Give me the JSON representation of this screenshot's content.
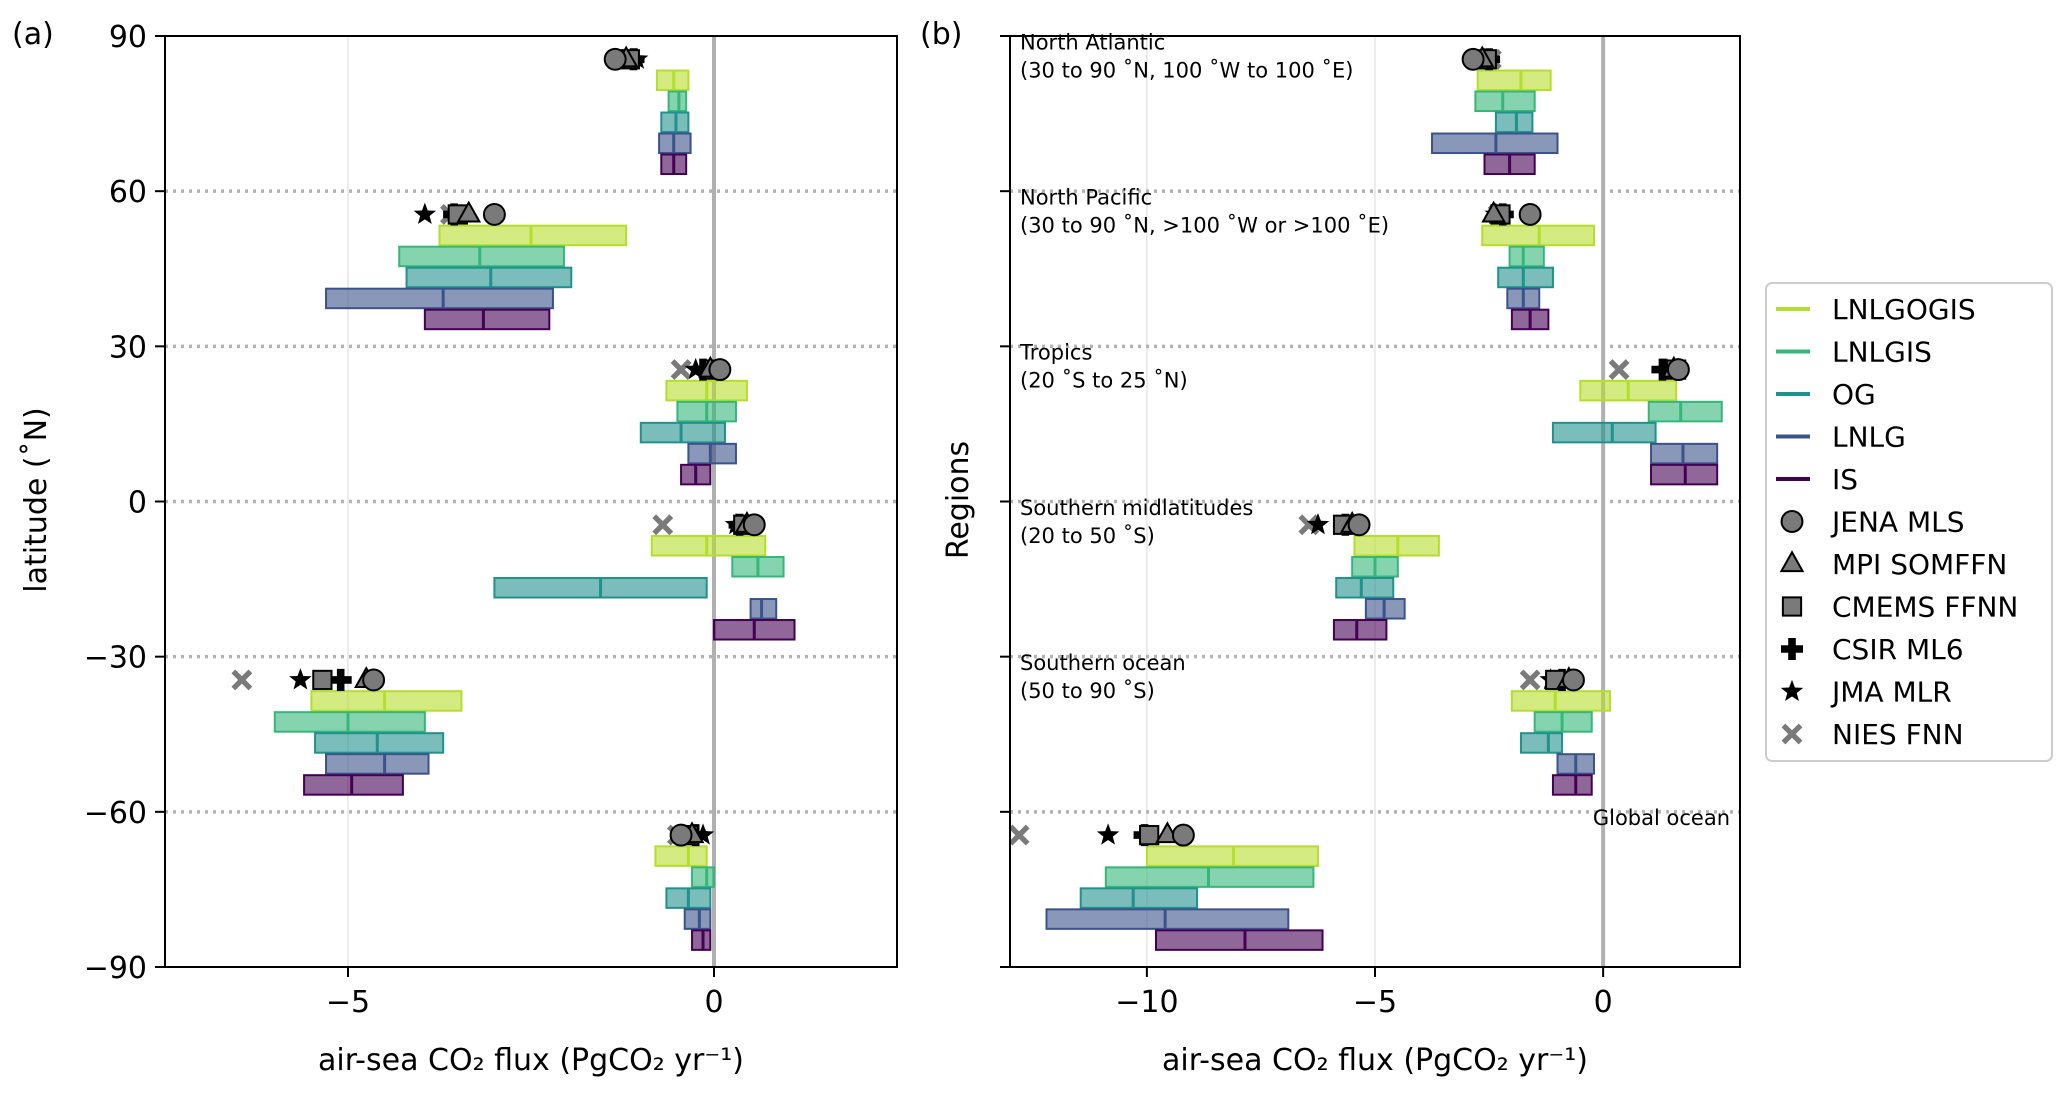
{
  "figure": {
    "legend": [
      {
        "name": "LNLGOGIS",
        "kind": "line",
        "color": "#b5de2b"
      },
      {
        "name": "LNLGIS",
        "kind": "line",
        "color": "#35b779"
      },
      {
        "name": "OG",
        "kind": "line",
        "color": "#21918c"
      },
      {
        "name": "LNLG",
        "kind": "line",
        "color": "#3b528b"
      },
      {
        "name": "IS",
        "kind": "line",
        "color": "#440154"
      },
      {
        "name": "JENA MLS",
        "kind": "marker",
        "marker": "circle"
      },
      {
        "name": "MPI SOMFFN",
        "kind": "marker",
        "marker": "triangle"
      },
      {
        "name": "CMEMS FFNN",
        "kind": "marker",
        "marker": "square"
      },
      {
        "name": "CSIR ML6",
        "kind": "marker",
        "marker": "plus"
      },
      {
        "name": "JMA MLR",
        "kind": "marker",
        "marker": "star"
      },
      {
        "name": "NIES FNN",
        "kind": "marker",
        "marker": "x"
      }
    ],
    "legend_placement": "right, outside panels",
    "marker_colors": {
      "black": "#000000",
      "gray": "#7a7a7a"
    }
  },
  "chart_data": [
    {
      "type": "bar",
      "orientation": "horizontal-range",
      "panel_label": "(a)",
      "xlabel": "air-sea CO₂ flux (PgCO₂ yr⁻¹)",
      "ylabel": "latitude (˚N)",
      "xlim": [
        -7.5,
        2.5
      ],
      "ylim": [
        -90,
        90
      ],
      "xticks": [
        -5,
        0
      ],
      "xtick_labels": [
        "−5",
        "0"
      ],
      "yticks": [
        -90,
        -60,
        -30,
        0,
        30,
        60,
        90
      ],
      "ytick_labels": [
        "−90",
        "−60",
        "−30",
        "0",
        "30",
        "60",
        "90"
      ],
      "separators": [
        60,
        30,
        0,
        -30,
        -60
      ],
      "zero_line": 0,
      "groups": [
        {
          "y": 85.5,
          "markers": [
            -1.35,
            -1.2,
            -1.15,
            -1.1,
            -1.05,
            -1.15
          ],
          "bars": [
            [
              -0.78,
              -0.35,
              -0.55
            ],
            [
              -0.62,
              -0.38,
              -0.48
            ],
            [
              -0.72,
              -0.35,
              -0.52
            ],
            [
              -0.75,
              -0.32,
              -0.55
            ],
            [
              -0.72,
              -0.38,
              -0.55
            ]
          ]
        },
        {
          "y": 55.5,
          "markers": [
            -3.0,
            -3.35,
            -3.5,
            -3.55,
            -3.95,
            -3.6
          ],
          "bars": [
            [
              -3.75,
              -1.2,
              -2.5
            ],
            [
              -4.3,
              -2.05,
              -3.2
            ],
            [
              -4.2,
              -1.95,
              -3.05
            ],
            [
              -5.3,
              -2.2,
              -3.7
            ],
            [
              -3.95,
              -2.25,
              -3.15
            ]
          ]
        },
        {
          "y": 25.5,
          "markers": [
            0.08,
            -0.05,
            0.0,
            -0.15,
            -0.25,
            -0.45
          ],
          "bars": [
            [
              -0.65,
              0.45,
              -0.1
            ],
            [
              -0.5,
              0.3,
              -0.1
            ],
            [
              -1.0,
              0.15,
              -0.45
            ],
            [
              -0.35,
              0.3,
              -0.05
            ],
            [
              -0.45,
              -0.05,
              -0.25
            ]
          ]
        },
        {
          "y": -4.5,
          "markers": [
            0.55,
            0.45,
            0.4,
            0.35,
            0.3,
            -0.7
          ],
          "bars": [
            [
              -0.85,
              0.7,
              -0.1
            ],
            [
              0.25,
              0.95,
              0.6
            ],
            [
              -3.0,
              -0.1,
              -1.55
            ],
            [
              0.5,
              0.85,
              0.65
            ],
            [
              0.0,
              1.1,
              0.55
            ]
          ]
        },
        {
          "y": -34.5,
          "markers": [
            -4.65,
            -4.75,
            -5.35,
            -5.1,
            -5.65,
            -6.45
          ],
          "bars": [
            [
              -5.5,
              -3.45,
              -4.5
            ],
            [
              -6.0,
              -3.95,
              -5.0
            ],
            [
              -5.45,
              -3.7,
              -4.6
            ],
            [
              -5.3,
              -3.9,
              -4.5
            ],
            [
              -5.6,
              -4.25,
              -4.95
            ]
          ]
        },
        {
          "y": -64.5,
          "markers": [
            -0.45,
            -0.3,
            -0.35,
            -0.25,
            -0.15,
            -0.5
          ],
          "bars": [
            [
              -0.8,
              -0.1,
              -0.35
            ],
            [
              -0.3,
              0.0,
              -0.1
            ],
            [
              -0.65,
              -0.05,
              -0.35
            ],
            [
              -0.4,
              -0.05,
              -0.2
            ],
            [
              -0.3,
              -0.05,
              -0.15
            ]
          ]
        }
      ]
    },
    {
      "type": "bar",
      "orientation": "horizontal-range",
      "panel_label": "(b)",
      "xlabel": "air-sea CO₂ flux (PgCO₂ yr⁻¹)",
      "ylabel": "Regions",
      "xlim": [
        -13,
        3
      ],
      "ylim": [
        -90,
        90
      ],
      "xticks": [
        -10,
        -5,
        0
      ],
      "xtick_labels": [
        "−10",
        "−5",
        "0"
      ],
      "separators": [
        60,
        30,
        0,
        -30,
        -60
      ],
      "zero_line": 0,
      "groups": [
        {
          "label_lines": [
            "North Atlantic",
            "(30 to 90 ˚N, 100 ˚W to 100 ˚E)"
          ],
          "y": 85.5,
          "markers": [
            -2.85,
            -2.65,
            -2.55,
            -2.5,
            -2.6,
            -2.45
          ],
          "bars": [
            [
              -2.75,
              -1.15,
              -1.8
            ],
            [
              -2.8,
              -1.5,
              -2.2
            ],
            [
              -2.35,
              -1.55,
              -1.9
            ],
            [
              -3.75,
              -1.0,
              -2.35
            ],
            [
              -2.6,
              -1.5,
              -2.05
            ]
          ]
        },
        {
          "label_lines": [
            "North Pacific",
            "(30 to 90 ˚N, >100 ˚W or >100 ˚E)"
          ],
          "y": 55.5,
          "markers": [
            -1.6,
            -2.4,
            -2.25,
            -2.2,
            -2.35,
            -2.3
          ],
          "bars": [
            [
              -2.65,
              -0.2,
              -1.4
            ],
            [
              -2.05,
              -1.3,
              -1.75
            ],
            [
              -2.3,
              -1.1,
              -1.75
            ],
            [
              -2.1,
              -1.4,
              -1.75
            ],
            [
              -2.0,
              -1.2,
              -1.6
            ]
          ]
        },
        {
          "label_lines": [
            "Tropics",
            "(20 ˚S to 25 ˚N)"
          ],
          "y": 25.5,
          "markers": [
            1.65,
            1.55,
            1.6,
            1.3,
            1.4,
            0.35
          ],
          "bars": [
            [
              -0.5,
              1.6,
              0.55
            ],
            [
              1.0,
              2.6,
              1.7
            ],
            [
              -1.1,
              1.15,
              0.2
            ],
            [
              1.05,
              2.5,
              1.75
            ],
            [
              1.05,
              2.5,
              1.8
            ]
          ]
        },
        {
          "label_lines": [
            "Southern midlatitudes",
            "(20 to 50 ˚S)"
          ],
          "y": -4.5,
          "markers": [
            -5.35,
            -5.5,
            -5.7,
            -5.65,
            -6.25,
            -6.45
          ],
          "bars": [
            [
              -5.45,
              -3.6,
              -4.5
            ],
            [
              -5.5,
              -4.5,
              -5.0
            ],
            [
              -5.85,
              -4.6,
              -5.3
            ],
            [
              -5.2,
              -4.35,
              -4.8
            ],
            [
              -5.9,
              -4.75,
              -5.4
            ]
          ]
        },
        {
          "label_lines": [
            "Southern ocean",
            "(50 to 90 ˚S)"
          ],
          "y": -34.5,
          "markers": [
            -0.65,
            -0.75,
            -1.05,
            -0.9,
            -1.15,
            -1.6
          ],
          "bars": [
            [
              -2.0,
              0.15,
              -1.05
            ],
            [
              -1.5,
              -0.25,
              -0.9
            ],
            [
              -1.8,
              -0.9,
              -1.2
            ],
            [
              -1.0,
              -0.2,
              -0.6
            ],
            [
              -1.1,
              -0.25,
              -0.6
            ]
          ]
        },
        {
          "label_lines": [
            "Global ocean"
          ],
          "label_align": "right",
          "y": -64.5,
          "markers": [
            -9.2,
            -9.55,
            -9.95,
            -10.05,
            -10.85,
            -12.8
          ],
          "bars": [
            [
              -10.0,
              -6.25,
              -8.1
            ],
            [
              -10.9,
              -6.35,
              -8.65
            ],
            [
              -11.45,
              -8.9,
              -10.3
            ],
            [
              -12.2,
              -6.9,
              -9.6
            ],
            [
              -9.8,
              -6.15,
              -7.85
            ]
          ]
        }
      ]
    }
  ]
}
